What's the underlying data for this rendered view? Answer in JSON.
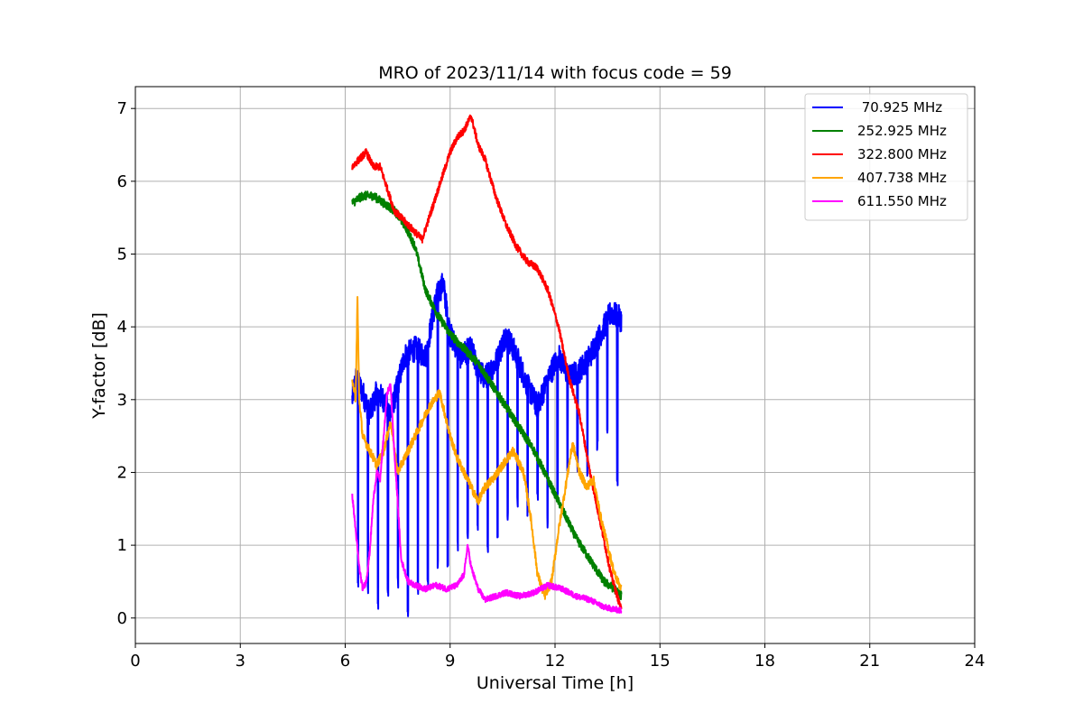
{
  "chart_data": {
    "type": "line",
    "title": "MRO of 2023/11/14 with focus code = 59",
    "xlabel": "Universal Time [h]",
    "ylabel": "Y-factor [dB]",
    "xlim": [
      0,
      24
    ],
    "ylim": [
      -0.35,
      7.3
    ],
    "xticks": [
      "0",
      "3",
      "6",
      "9",
      "12",
      "15",
      "18",
      "21",
      "24"
    ],
    "yticks": [
      "0",
      "1",
      "2",
      "3",
      "4",
      "5",
      "6",
      "7"
    ],
    "grid": true,
    "legend_position": "top-right",
    "series": [
      {
        "name": "70.925 MHz",
        "label": " 70.925 MHz",
        "color": "#0000ff",
        "x": [
          6.2,
          6.3,
          6.5,
          6.7,
          6.9,
          7.1,
          7.3,
          7.5,
          7.7,
          8.0,
          8.3,
          8.6,
          8.8,
          9.0,
          9.3,
          9.6,
          9.8,
          10.0,
          10.3,
          10.6,
          10.9,
          11.2,
          11.5,
          11.8,
          12.1,
          12.4,
          12.7,
          13.0,
          13.3,
          13.6,
          13.9
        ],
        "y": [
          3.0,
          3.3,
          3.1,
          2.8,
          3.1,
          3.0,
          2.8,
          3.2,
          3.6,
          3.7,
          3.6,
          4.4,
          4.6,
          3.9,
          3.6,
          3.7,
          3.4,
          3.3,
          3.5,
          3.9,
          3.6,
          3.2,
          2.9,
          3.3,
          3.6,
          3.3,
          3.4,
          3.6,
          3.9,
          4.2,
          4.1
        ],
        "dips": [
          0.4,
          0.3,
          0.1,
          0.2,
          0.4,
          0.0,
          0.3,
          0.4,
          0.6,
          0.7,
          0.9,
          1.0,
          1.2,
          0.8,
          1.1,
          1.3,
          1.5,
          1.4,
          1.6,
          1.2,
          1.7,
          1.9,
          2.0,
          1.9,
          2.3,
          2.4,
          1.8
        ]
      },
      {
        "name": "252.925 MHz",
        "label": "252.925 MHz",
        "color": "#008000",
        "x": [
          6.2,
          6.5,
          6.8,
          7.1,
          7.4,
          7.7,
          8.0,
          8.3,
          8.6,
          9.0,
          9.4,
          9.8,
          10.2,
          10.6,
          11.0,
          11.4,
          11.8,
          12.2,
          12.6,
          13.0,
          13.4,
          13.7,
          13.9
        ],
        "y": [
          5.7,
          5.8,
          5.8,
          5.7,
          5.6,
          5.4,
          5.1,
          4.5,
          4.2,
          3.9,
          3.7,
          3.5,
          3.2,
          2.9,
          2.6,
          2.3,
          1.9,
          1.5,
          1.1,
          0.8,
          0.5,
          0.4,
          0.3
        ]
      },
      {
        "name": "322.800 MHz",
        "label": "322.800 MHz",
        "color": "#ff0000",
        "x": [
          6.2,
          6.4,
          6.6,
          6.8,
          7.0,
          7.2,
          7.4,
          7.6,
          7.8,
          8.0,
          8.2,
          8.4,
          8.6,
          8.8,
          9.0,
          9.2,
          9.4,
          9.6,
          9.8,
          10.0,
          10.3,
          10.6,
          10.9,
          11.2,
          11.5,
          11.8,
          12.1,
          12.4,
          12.7,
          13.0,
          13.3,
          13.6,
          13.9
        ],
        "y": [
          6.2,
          6.3,
          6.4,
          6.2,
          6.2,
          5.9,
          5.6,
          5.5,
          5.4,
          5.3,
          5.2,
          5.5,
          5.8,
          6.1,
          6.4,
          6.6,
          6.7,
          6.9,
          6.5,
          6.3,
          5.8,
          5.4,
          5.1,
          4.9,
          4.8,
          4.5,
          4.0,
          3.3,
          2.8,
          2.0,
          1.3,
          0.6,
          0.1
        ]
      },
      {
        "name": "407.738 MHz",
        "label": "407.738 MHz",
        "color": "#ffa500",
        "x": [
          6.2,
          6.3,
          6.35,
          6.4,
          6.5,
          6.7,
          6.9,
          7.1,
          7.3,
          7.5,
          7.8,
          8.1,
          8.4,
          8.7,
          9.0,
          9.2,
          9.4,
          9.6,
          9.8,
          10.0,
          10.2,
          10.5,
          10.8,
          11.1,
          11.3,
          11.5,
          11.7,
          11.9,
          12.1,
          12.3,
          12.5,
          12.7,
          12.9,
          13.1,
          13.3,
          13.5,
          13.7,
          13.9
        ],
        "y": [
          3.3,
          3.0,
          4.4,
          3.0,
          2.5,
          2.3,
          2.1,
          2.3,
          2.7,
          2.0,
          2.3,
          2.6,
          2.9,
          3.1,
          2.5,
          2.2,
          2.0,
          1.8,
          1.6,
          1.8,
          1.9,
          2.1,
          2.3,
          2.0,
          1.4,
          0.6,
          0.3,
          0.5,
          1.2,
          1.8,
          2.4,
          2.0,
          1.8,
          1.9,
          1.4,
          1.0,
          0.6,
          0.4
        ]
      },
      {
        "name": "611.550 MHz",
        "label": "611.550 MHz",
        "color": "#ff00ff",
        "x": [
          6.2,
          6.3,
          6.4,
          6.5,
          6.6,
          6.7,
          6.8,
          6.9,
          7.0,
          7.1,
          7.2,
          7.3,
          7.4,
          7.5,
          7.6,
          7.8,
          8.0,
          8.3,
          8.6,
          8.9,
          9.2,
          9.4,
          9.5,
          9.6,
          9.8,
          10.0,
          10.3,
          10.6,
          11.0,
          11.4,
          11.8,
          12.2,
          12.6,
          13.0,
          13.4,
          13.9
        ],
        "y": [
          1.7,
          1.2,
          0.7,
          0.4,
          0.5,
          0.9,
          1.6,
          2.0,
          1.9,
          2.5,
          3.1,
          3.2,
          2.3,
          1.6,
          0.8,
          0.5,
          0.45,
          0.4,
          0.45,
          0.4,
          0.45,
          0.6,
          1.0,
          0.7,
          0.4,
          0.25,
          0.3,
          0.35,
          0.3,
          0.35,
          0.45,
          0.4,
          0.3,
          0.25,
          0.15,
          0.1
        ]
      }
    ]
  }
}
